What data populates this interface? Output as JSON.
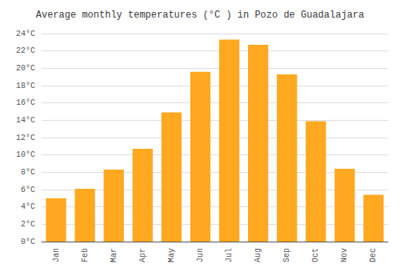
{
  "chart_data": {
    "type": "bar",
    "title": "Average monthly temperatures (°C ) in Pozo de Guadalajara",
    "categories": [
      "Jan",
      "Feb",
      "Mar",
      "Apr",
      "May",
      "Jun",
      "Jul",
      "Aug",
      "Sep",
      "Oct",
      "Nov",
      "Dec"
    ],
    "values": [
      5.0,
      6.1,
      8.3,
      10.7,
      14.9,
      19.6,
      23.3,
      22.7,
      19.3,
      13.9,
      8.4,
      5.4
    ],
    "color": "#FFA820",
    "ylim": [
      0,
      24
    ],
    "yticks": [
      {
        "value": 0,
        "label": "0°C"
      },
      {
        "value": 2,
        "label": "2°C"
      },
      {
        "value": 4,
        "label": "4°C"
      },
      {
        "value": 6,
        "label": "6°C"
      },
      {
        "value": 8,
        "label": "8°C"
      },
      {
        "value": 10,
        "label": "10°C"
      },
      {
        "value": 12,
        "label": "12°C"
      },
      {
        "value": 14,
        "label": "14°C"
      },
      {
        "value": 16,
        "label": "16°C"
      },
      {
        "value": 18,
        "label": "18°C"
      },
      {
        "value": 20,
        "label": "20°C"
      },
      {
        "value": 22,
        "label": "22°C"
      },
      {
        "value": 24,
        "label": "24°C"
      }
    ],
    "grid": true
  }
}
